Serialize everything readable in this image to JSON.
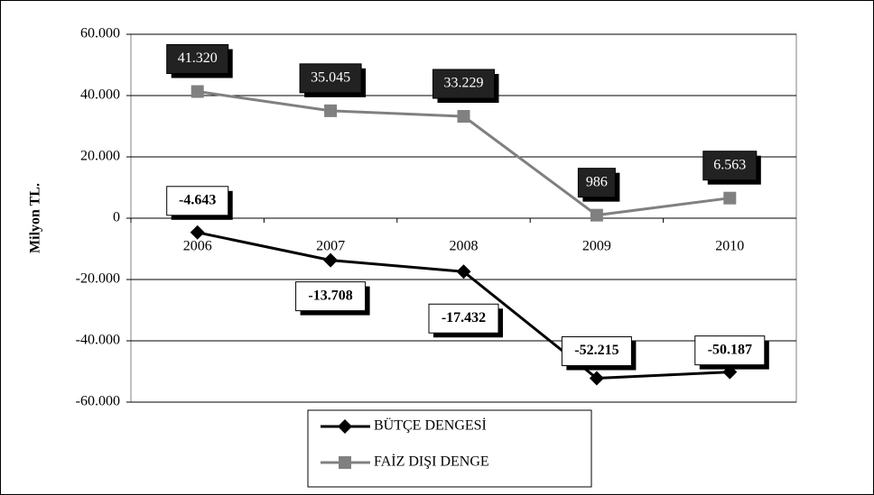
{
  "chart_data": {
    "type": "line",
    "y_label": "Milyon TL.",
    "categories": [
      "2006",
      "2007",
      "2008",
      "2009",
      "2010"
    ],
    "series": [
      {
        "name": "BÜTÇE DENGESİ",
        "color": "#000000",
        "marker": "diamond",
        "values": [
          -4643,
          -13708,
          -17432,
          -52215,
          -50187
        ],
        "value_labels": [
          "-4.643",
          "-13.708",
          "-17.432",
          "-52.215",
          "-50.187"
        ]
      },
      {
        "name": "FAİZ DIŞI DENGE",
        "color": "#808080",
        "marker": "square",
        "values": [
          41320,
          35045,
          33229,
          986,
          6563
        ],
        "value_labels": [
          "41.320",
          "35.045",
          "33.229",
          "986",
          "6.563"
        ]
      }
    ],
    "ylim": [
      -60000,
      60000
    ],
    "yticks": [
      {
        "value": -60000,
        "label": "-60.000"
      },
      {
        "value": -40000,
        "label": "-40.000"
      },
      {
        "value": -20000,
        "label": "-20.000"
      },
      0,
      {
        "value": 20000,
        "label": "20.000"
      },
      {
        "value": 40000,
        "label": "40.000"
      },
      {
        "value": 60000,
        "label": "60.000"
      }
    ],
    "grid": true,
    "legend": "bottom"
  }
}
